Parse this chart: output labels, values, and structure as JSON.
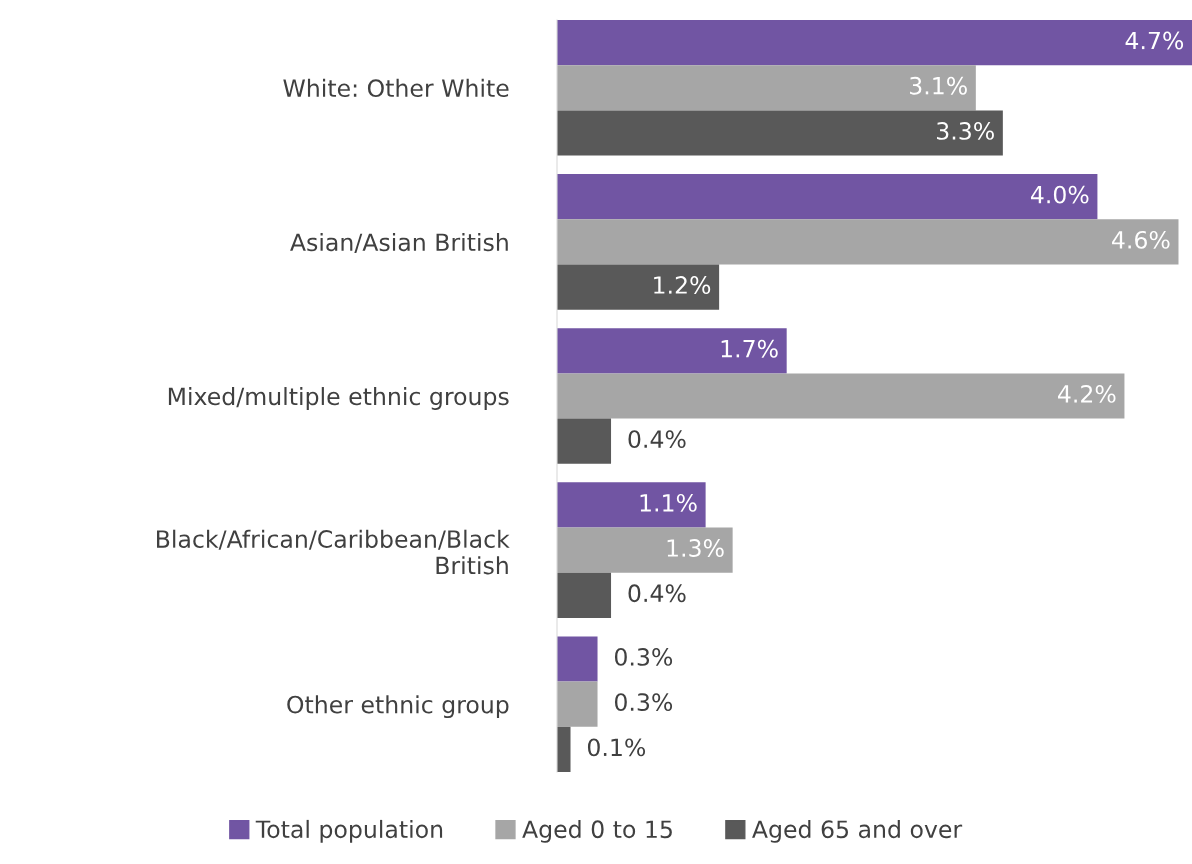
{
  "chart_data": {
    "type": "bar",
    "orientation": "horizontal",
    "categories": [
      "White: Other White",
      "Asian/Asian British",
      "Mixed/multiple ethnic groups",
      "Black/African/Caribbean/Black British",
      "Other ethnic group"
    ],
    "series": [
      {
        "name": "Total population",
        "color": "#7155a3",
        "values": [
          4.7,
          4.0,
          1.7,
          1.1,
          0.3
        ],
        "value_labels": [
          "4.7%",
          "4.0%",
          "1.7%",
          "1.1%",
          "0.3%"
        ]
      },
      {
        "name": "Aged 0 to 15",
        "color": "#a6a6a6",
        "values": [
          3.1,
          4.6,
          4.2,
          1.3,
          0.3
        ],
        "value_labels": [
          "3.1%",
          "4.6%",
          "4.2%",
          "1.3%",
          "0.3%"
        ]
      },
      {
        "name": "Aged 65 and over",
        "color": "#595959",
        "values": [
          3.3,
          1.2,
          0.4,
          0.4,
          0.1
        ],
        "value_labels": [
          "3.3%",
          "1.2%",
          "0.4%",
          "0.4%",
          "0.1%"
        ]
      }
    ],
    "legend": "bottom",
    "grid": false
  }
}
